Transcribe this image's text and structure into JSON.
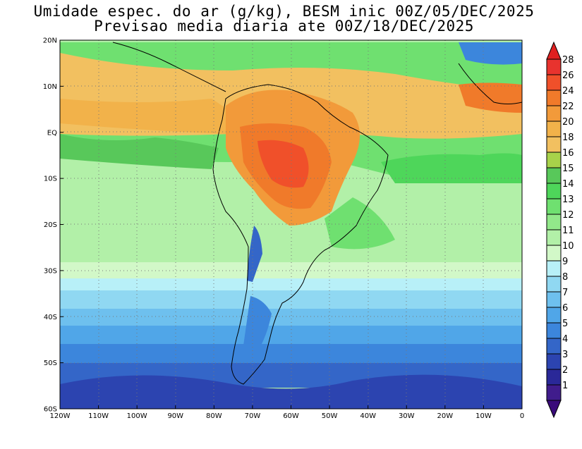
{
  "title": {
    "line1": "Umidade espec. do ar (g/kg), BESM inic 00Z/05/DEC/2025",
    "line2": "Previsao media diaria ate 00Z/18/DEC/2025"
  },
  "map": {
    "lon_range": [
      -120,
      0
    ],
    "lat_range": [
      -60,
      20
    ],
    "lat_ticks": [
      {
        "value": 20,
        "label": "20N"
      },
      {
        "value": 10,
        "label": "10N"
      },
      {
        "value": 0,
        "label": "EQ"
      },
      {
        "value": -10,
        "label": "10S"
      },
      {
        "value": -20,
        "label": "20S"
      },
      {
        "value": -30,
        "label": "30S"
      },
      {
        "value": -40,
        "label": "40S"
      },
      {
        "value": -50,
        "label": "50S"
      },
      {
        "value": -60,
        "label": "60S"
      }
    ],
    "lon_ticks": [
      {
        "value": -120,
        "label": "120W"
      },
      {
        "value": -110,
        "label": "110W"
      },
      {
        "value": -100,
        "label": "100W"
      },
      {
        "value": -90,
        "label": "90W"
      },
      {
        "value": -80,
        "label": "80W"
      },
      {
        "value": -70,
        "label": "70W"
      },
      {
        "value": -60,
        "label": "60W"
      },
      {
        "value": -50,
        "label": "50W"
      },
      {
        "value": -40,
        "label": "40W"
      },
      {
        "value": -30,
        "label": "30W"
      },
      {
        "value": -20,
        "label": "20W"
      },
      {
        "value": -10,
        "label": "10W"
      },
      {
        "value": 0,
        "label": "0"
      }
    ]
  },
  "colorbar": {
    "levels": [
      {
        "label": "28",
        "color": "#e8332e"
      },
      {
        "label": "26",
        "color": "#f0502a"
      },
      {
        "label": "24",
        "color": "#f07a2a"
      },
      {
        "label": "22",
        "color": "#f29a3a"
      },
      {
        "label": "20",
        "color": "#f2b24a"
      },
      {
        "label": "18",
        "color": "#f2c060"
      },
      {
        "label": "16",
        "color": "#a8d24a"
      },
      {
        "label": "15",
        "color": "#58c85a"
      },
      {
        "label": "14",
        "color": "#4ed65a"
      },
      {
        "label": "13",
        "color": "#6fe070"
      },
      {
        "label": "12",
        "color": "#92e88a"
      },
      {
        "label": "11",
        "color": "#b2f0a8"
      },
      {
        "label": "10",
        "color": "#d2f8c8"
      },
      {
        "label": "9",
        "color": "#b8f0f8"
      },
      {
        "label": "8",
        "color": "#90d8f2"
      },
      {
        "label": "7",
        "color": "#6ec0ee"
      },
      {
        "label": "6",
        "color": "#50a6e8"
      },
      {
        "label": "5",
        "color": "#3c86dc"
      },
      {
        "label": "4",
        "color": "#3466c8"
      },
      {
        "label": "3",
        "color": "#2c44b0"
      },
      {
        "label": "2",
        "color": "#2a2898"
      },
      {
        "label": "1",
        "color": "#401c8c"
      }
    ],
    "top_color": "#e02020",
    "bottom_color": "#3a0a7a"
  }
}
